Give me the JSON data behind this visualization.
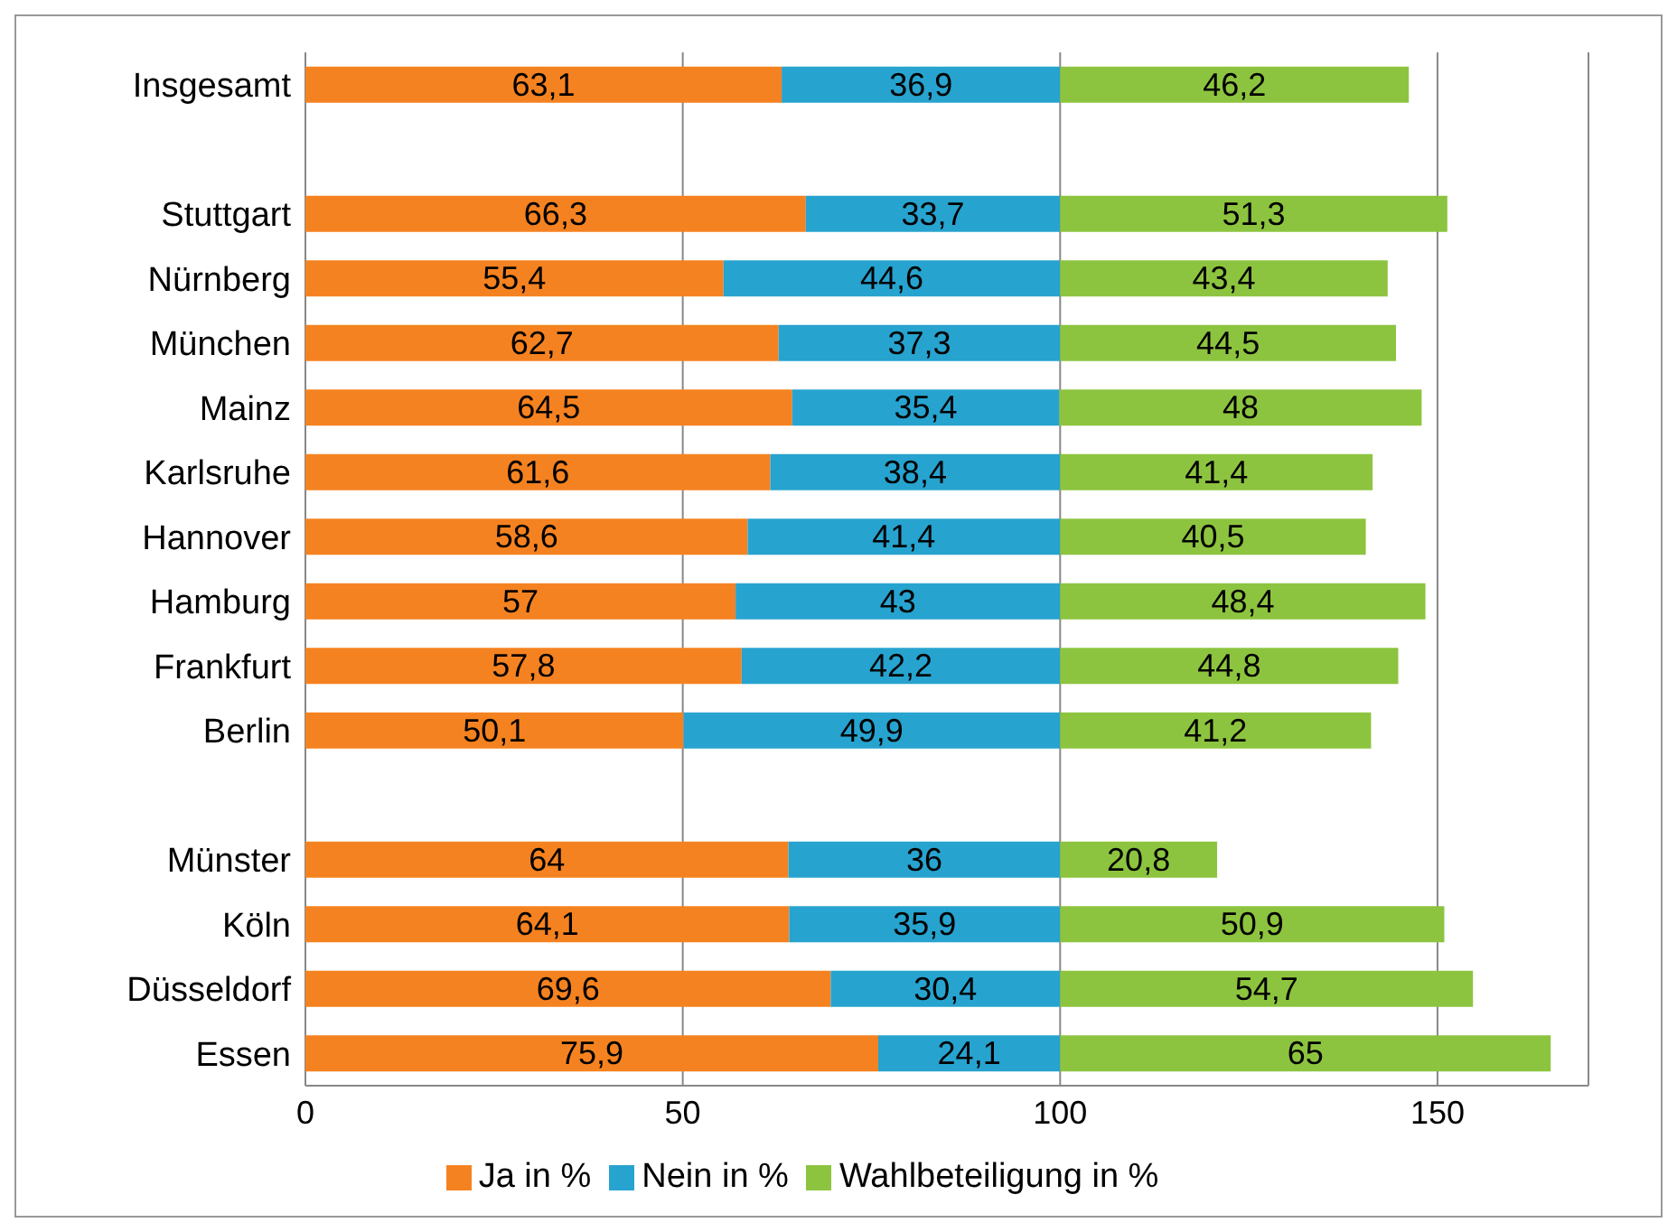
{
  "chart_data": {
    "type": "bar",
    "orientation": "horizontal",
    "stacked": true,
    "categories": [
      "Insgesamt",
      null,
      "Stuttgart",
      "Nürnberg",
      "München",
      "Mainz",
      "Karlsruhe",
      "Hannover",
      "Hamburg",
      "Frankfurt",
      "Berlin",
      null,
      "Münster",
      "Köln",
      "Düsseldorf",
      "Essen"
    ],
    "series": [
      {
        "name": "Ja in %",
        "color": "#f58220",
        "values": [
          63.1,
          null,
          66.3,
          55.4,
          62.7,
          64.5,
          61.6,
          58.6,
          57,
          57.8,
          50.1,
          null,
          64,
          64.1,
          69.6,
          75.9
        ],
        "value_labels": [
          "63,1",
          null,
          "66,3",
          "55,4",
          "62,7",
          "64,5",
          "61,6",
          "58,6",
          "57",
          "57,8",
          "50,1",
          null,
          "64",
          "64,1",
          "69,6",
          "75,9"
        ]
      },
      {
        "name": "Nein in %",
        "color": "#27a3cf",
        "values": [
          36.9,
          null,
          33.7,
          44.6,
          37.3,
          35.4,
          38.4,
          41.4,
          43,
          42.2,
          49.9,
          null,
          36,
          35.9,
          30.4,
          24.1
        ],
        "value_labels": [
          "36,9",
          null,
          "33,7",
          "44,6",
          "37,3",
          "35,4",
          "38,4",
          "41,4",
          "43",
          "42,2",
          "49,9",
          null,
          "36",
          "35,9",
          "30,4",
          "24,1"
        ]
      },
      {
        "name": "Wahlbeteiligung in %",
        "color": "#8dc43f",
        "values": [
          46.2,
          null,
          51.3,
          43.4,
          44.5,
          48,
          41.4,
          40.5,
          48.4,
          44.8,
          41.2,
          null,
          20.8,
          50.9,
          54.7,
          65
        ],
        "value_labels": [
          "46,2",
          null,
          "51,3",
          "43,4",
          "44,5",
          "48",
          "41,4",
          "40,5",
          "48,4",
          "44,8",
          "41,2",
          null,
          "20,8",
          "50,9",
          "54,7",
          "65"
        ]
      }
    ],
    "xlim": [
      0,
      170
    ],
    "xticks": [
      0,
      50,
      100,
      150
    ],
    "grid": "x",
    "legend": "bottom"
  }
}
